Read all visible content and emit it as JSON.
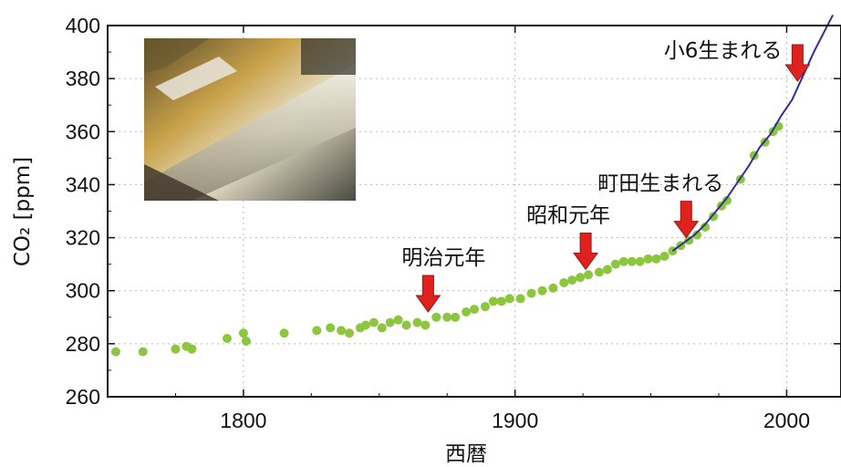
{
  "chart_data": {
    "type": "scatter",
    "title": "",
    "xlabel": "西暦",
    "ylabel": "CO₂ [ppm]",
    "xlim": [
      1750,
      2020
    ],
    "ylim": [
      260,
      400
    ],
    "grid": true,
    "x_ticks": [
      1800,
      1900,
      2000
    ],
    "y_ticks": [
      260,
      280,
      300,
      320,
      340,
      360,
      380,
      400
    ],
    "colors": {
      "points": "#8cc63f",
      "line": "#2b2f9a",
      "arrow": "#e0221f"
    },
    "series": [
      {
        "marker": "dot",
        "points": [
          [
            1753,
            277
          ],
          [
            1763,
            277
          ],
          [
            1775,
            278
          ],
          [
            1779,
            279
          ],
          [
            1781,
            278
          ],
          [
            1794,
            282
          ],
          [
            1800,
            284
          ],
          [
            1801,
            281
          ],
          [
            1815,
            284
          ],
          [
            1827,
            285
          ],
          [
            1832,
            286
          ],
          [
            1836,
            285
          ],
          [
            1839,
            284
          ],
          [
            1843,
            286
          ],
          [
            1845,
            287
          ],
          [
            1848,
            288
          ],
          [
            1851,
            286
          ],
          [
            1854,
            288
          ],
          [
            1857,
            289
          ],
          [
            1860,
            287
          ],
          [
            1864,
            288
          ],
          [
            1867,
            287
          ],
          [
            1871,
            290
          ],
          [
            1875,
            290
          ],
          [
            1878,
            290
          ],
          [
            1882,
            292
          ],
          [
            1885,
            293
          ],
          [
            1889,
            294
          ],
          [
            1892,
            296
          ],
          [
            1895,
            296
          ],
          [
            1898,
            297
          ],
          [
            1902,
            297
          ],
          [
            1906,
            299
          ],
          [
            1910,
            300
          ],
          [
            1914,
            301
          ],
          [
            1918,
            303
          ],
          [
            1921,
            304
          ],
          [
            1924,
            305
          ],
          [
            1927,
            306
          ],
          [
            1931,
            307
          ],
          [
            1934,
            308
          ],
          [
            1937,
            310
          ],
          [
            1940,
            311
          ],
          [
            1943,
            311
          ],
          [
            1946,
            311
          ],
          [
            1949,
            312
          ],
          [
            1952,
            312
          ],
          [
            1955,
            313
          ],
          [
            1958,
            315
          ],
          [
            1961,
            317
          ],
          [
            1964,
            319
          ],
          [
            1967,
            321
          ],
          [
            1970,
            324
          ],
          [
            1973,
            328
          ],
          [
            1976,
            332
          ],
          [
            1978,
            334
          ],
          [
            1983,
            342
          ],
          [
            1988,
            351
          ],
          [
            1992,
            356
          ],
          [
            1995,
            360
          ],
          [
            1997,
            362
          ]
        ]
      },
      {
        "marker": "line",
        "points": [
          [
            1958,
            315
          ],
          [
            1962,
            318
          ],
          [
            1966,
            321
          ],
          [
            1970,
            325
          ],
          [
            1974,
            330
          ],
          [
            1978,
            335
          ],
          [
            1982,
            341
          ],
          [
            1986,
            347
          ],
          [
            1990,
            354
          ],
          [
            1994,
            359
          ],
          [
            1998,
            366
          ],
          [
            2002,
            372
          ],
          [
            2006,
            381
          ],
          [
            2010,
            390
          ],
          [
            2014,
            398
          ],
          [
            2017,
            404
          ]
        ]
      }
    ],
    "annotations": [
      {
        "label": "明治元年",
        "x": 1868,
        "y": 292
      },
      {
        "label": "昭和元年",
        "x": 1926,
        "y": 308
      },
      {
        "label": "町田生まれる",
        "x": 1963,
        "y": 320
      },
      {
        "label": "小6生まれる",
        "x": 2004,
        "y": 379
      }
    ],
    "inset_photo": "ice-core-photo"
  }
}
